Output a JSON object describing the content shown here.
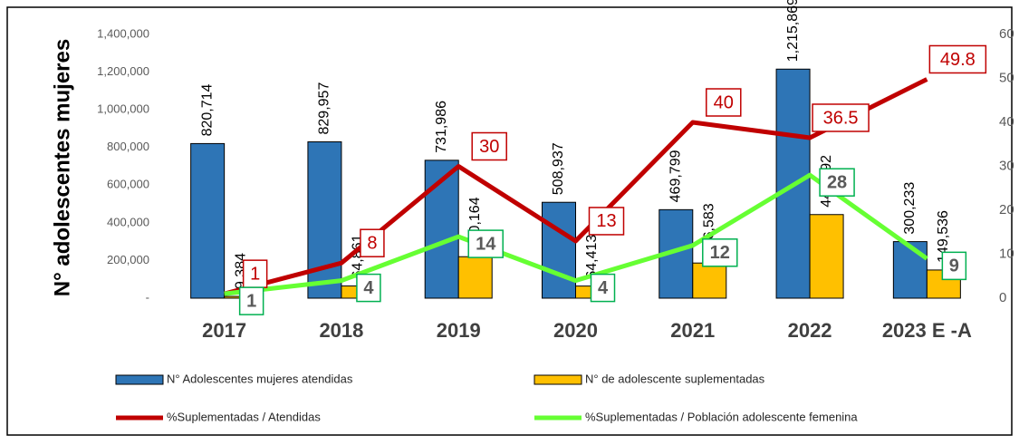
{
  "chart_data": {
    "type": "bar_line",
    "y_label": "N° adolescentes mujeres",
    "categories": [
      "2017",
      "2018",
      "2019",
      "2020",
      "2021",
      "2022",
      "2023 E -A"
    ],
    "series": [
      {
        "name": "N° Adolescentes mujeres atendidas",
        "color": "#2e75b6",
        "kind": "bar",
        "values": [
          820714,
          829957,
          731986,
          508937,
          469799,
          1215869,
          300233
        ],
        "value_labels": [
          "820,714",
          "829,957",
          "731,986",
          "508,937",
          "469,799",
          "1,215,869",
          "300,233"
        ]
      },
      {
        "name": "N° de adolescente suplementadas",
        "color": "#ffc000",
        "kind": "bar",
        "values": [
          9384,
          64861,
          220164,
          64413,
          186583,
          443792,
          149536
        ],
        "value_labels": [
          "9,384",
          "64,861",
          "220,164",
          "64,413",
          "186,583",
          "443,792",
          "149,536"
        ]
      },
      {
        "name": "%Suplementadas / Atendidas",
        "color": "#c00000",
        "kind": "line",
        "axis": "y2",
        "values": [
          1,
          8,
          30,
          13,
          40,
          36.5,
          49.8
        ]
      },
      {
        "name": "%Suplementadas / Población adolescente femenina",
        "color": "#66ff33",
        "kind": "line",
        "axis": "y2",
        "values": [
          1,
          4,
          14,
          4,
          12,
          28,
          9
        ]
      }
    ],
    "ylim": [
      0,
      1400000
    ],
    "yticks": [
      {
        "value": 0,
        "label": "-"
      },
      {
        "value": 200000,
        "label": "200,000"
      },
      {
        "value": 400000,
        "label": "400,000"
      },
      {
        "value": 600000,
        "label": "600,000"
      },
      {
        "value": 800000,
        "label": "800,000"
      },
      {
        "value": 1000000,
        "label": "1,000,000"
      },
      {
        "value": 1200000,
        "label": "1,200,000"
      },
      {
        "value": 1400000,
        "label": "1,400,000"
      }
    ],
    "y2lim": [
      0,
      60
    ],
    "y2ticks": [
      0,
      10,
      20,
      30,
      40,
      50,
      60
    ],
    "grid": false
  }
}
